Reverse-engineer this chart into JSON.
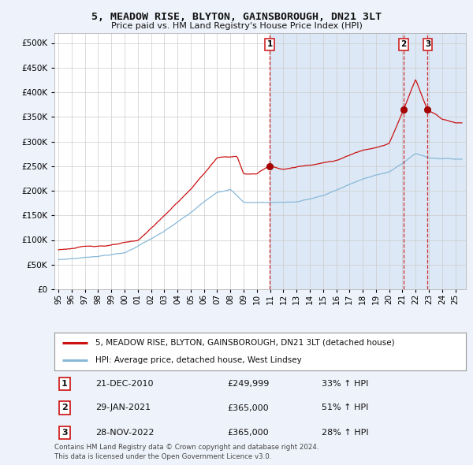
{
  "title": "5, MEADOW RISE, BLYTON, GAINSBOROUGH, DN21 3LT",
  "subtitle": "Price paid vs. HM Land Registry's House Price Index (HPI)",
  "legend_line1": "5, MEADOW RISE, BLYTON, GAINSBOROUGH, DN21 3LT (detached house)",
  "legend_line2": "HPI: Average price, detached house, West Lindsey",
  "transactions": [
    {
      "label": "1",
      "date": "21-DEC-2010",
      "price": "£249,999",
      "pct": "33% ↑ HPI",
      "x_year": 2010.97,
      "marker_y": 249999
    },
    {
      "label": "2",
      "date": "29-JAN-2021",
      "price": "£365,000",
      "pct": "51% ↑ HPI",
      "x_year": 2021.08,
      "marker_y": 365000
    },
    {
      "label": "3",
      "date": "28-NOV-2022",
      "price": "£365,000",
      "pct": "28% ↑ HPI",
      "x_year": 2022.91,
      "marker_y": 365000
    }
  ],
  "vline_color": "#cc0000",
  "shaded_color": "#dce8f5",
  "red_line_color": "#cc1111",
  "blue_line_color": "#88b8d8",
  "background_color": "#eef2fa",
  "plot_bg_left": "#ffffff",
  "plot_bg_right": "#dce8f5",
  "ylim": [
    0,
    520000
  ],
  "xlim_start": 1994.7,
  "xlim_end": 2025.8,
  "footer": "Contains HM Land Registry data © Crown copyright and database right 2024.\nThis data is licensed under the Open Government Licence v3.0.",
  "yticks": [
    0,
    50000,
    100000,
    150000,
    200000,
    250000,
    300000,
    350000,
    400000,
    450000,
    500000
  ],
  "ytick_labels": [
    "£0",
    "£50K",
    "£100K",
    "£150K",
    "£200K",
    "£250K",
    "£300K",
    "£350K",
    "£400K",
    "£450K",
    "£500K"
  ]
}
